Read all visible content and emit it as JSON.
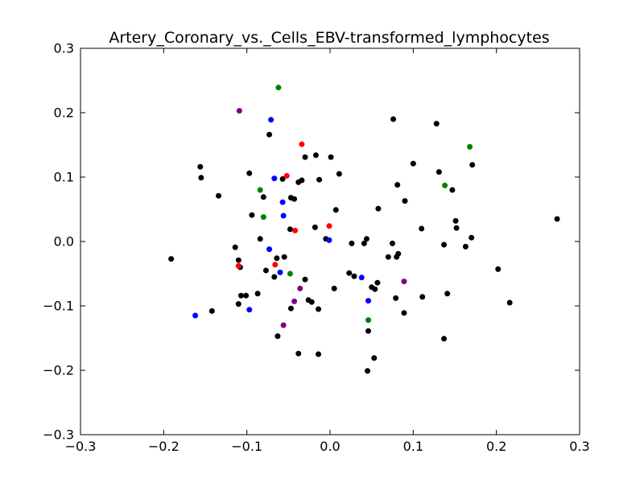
{
  "chart_data": {
    "type": "scatter",
    "title": "Artery_Coronary_vs._Cells_EBV-transformed_lymphocytes",
    "xlabel": "",
    "ylabel": "",
    "xlim": [
      -0.3,
      0.3
    ],
    "ylim": [
      -0.3,
      0.3
    ],
    "xticks": [
      "−0.3",
      "−0.2",
      "−0.1",
      "0.0",
      "0.1",
      "0.2",
      "0.3"
    ],
    "yticks": [
      "−0.3",
      "−0.2",
      "−0.1",
      "0.0",
      "0.1",
      "0.2",
      "0.3"
    ],
    "grid": false,
    "legend": "none",
    "colors": {
      "black": "#000000",
      "red": "#ff0000",
      "blue": "#0000ff",
      "green": "#008000",
      "purple": "#800080"
    },
    "series": [
      {
        "color": "black",
        "points": [
          [
            -0.156,
            0.116
          ],
          [
            -0.155,
            0.099
          ],
          [
            -0.134,
            0.071
          ],
          [
            -0.191,
            -0.027
          ],
          [
            -0.142,
            -0.108
          ],
          [
            -0.114,
            -0.009
          ],
          [
            -0.11,
            -0.029
          ],
          [
            -0.108,
            -0.04
          ],
          [
            -0.11,
            -0.097
          ],
          [
            -0.107,
            -0.084
          ],
          [
            -0.101,
            -0.084
          ],
          [
            -0.097,
            0.106
          ],
          [
            -0.094,
            0.041
          ],
          [
            -0.087,
            -0.081
          ],
          [
            -0.084,
            0.004
          ],
          [
            -0.08,
            0.069
          ],
          [
            -0.077,
            -0.045
          ],
          [
            -0.073,
            0.166
          ],
          [
            -0.067,
            -0.055
          ],
          [
            -0.064,
            -0.026
          ],
          [
            -0.063,
            -0.147
          ],
          [
            -0.057,
            0.097
          ],
          [
            -0.055,
            -0.024
          ],
          [
            -0.047,
            0.068
          ],
          [
            -0.048,
            0.019
          ],
          [
            -0.047,
            -0.104
          ],
          [
            -0.043,
            0.066
          ],
          [
            -0.038,
            0.092
          ],
          [
            -0.034,
            0.095
          ],
          [
            -0.038,
            -0.174
          ],
          [
            -0.03,
            0.131
          ],
          [
            -0.03,
            -0.059
          ],
          [
            -0.026,
            -0.091
          ],
          [
            -0.022,
            -0.094
          ],
          [
            -0.017,
            0.134
          ],
          [
            -0.014,
            -0.105
          ],
          [
            -0.013,
            0.096
          ],
          [
            -0.014,
            -0.175
          ],
          [
            -0.018,
            0.022
          ],
          [
            -0.005,
            0.004
          ],
          [
            0.001,
            0.131
          ],
          [
            0.005,
            -0.073
          ],
          [
            0.007,
            0.049
          ],
          [
            0.011,
            0.105
          ],
          [
            0.023,
            -0.049
          ],
          [
            0.026,
            -0.003
          ],
          [
            0.029,
            -0.054
          ],
          [
            0.041,
            -0.003
          ],
          [
            0.044,
            0.004
          ],
          [
            0.045,
            -0.201
          ],
          [
            0.046,
            -0.139
          ],
          [
            0.05,
            -0.071
          ],
          [
            0.053,
            -0.181
          ],
          [
            0.054,
            -0.074
          ],
          [
            0.057,
            -0.064
          ],
          [
            0.058,
            0.051
          ],
          [
            0.07,
            -0.024
          ],
          [
            0.075,
            -0.003
          ],
          [
            0.076,
            0.19
          ],
          [
            0.079,
            -0.088
          ],
          [
            0.08,
            -0.024
          ],
          [
            0.081,
            0.088
          ],
          [
            0.082,
            -0.019
          ],
          [
            0.089,
            -0.111
          ],
          [
            0.09,
            0.063
          ],
          [
            0.1,
            0.121
          ],
          [
            0.11,
            0.02
          ],
          [
            0.111,
            -0.086
          ],
          [
            0.128,
            0.183
          ],
          [
            0.131,
            0.108
          ],
          [
            0.137,
            -0.005
          ],
          [
            0.137,
            -0.151
          ],
          [
            0.141,
            -0.081
          ],
          [
            0.147,
            0.08
          ],
          [
            0.151,
            0.032
          ],
          [
            0.152,
            0.021
          ],
          [
            0.163,
            -0.008
          ],
          [
            0.17,
            0.006
          ],
          [
            0.171,
            0.119
          ],
          [
            0.202,
            -0.043
          ],
          [
            0.216,
            -0.095
          ],
          [
            0.273,
            0.035
          ]
        ]
      },
      {
        "color": "red",
        "points": [
          [
            -0.034,
            0.151
          ],
          [
            -0.052,
            0.102
          ],
          [
            -0.042,
            0.017
          ],
          [
            -0.001,
            0.024
          ],
          [
            -0.11,
            -0.038
          ],
          [
            -0.066,
            -0.036
          ]
        ]
      },
      {
        "color": "blue",
        "points": [
          [
            -0.071,
            0.189
          ],
          [
            -0.067,
            0.098
          ],
          [
            -0.057,
            0.061
          ],
          [
            -0.056,
            0.04
          ],
          [
            -0.073,
            -0.012
          ],
          [
            -0.06,
            -0.048
          ],
          [
            -0.001,
            0.002
          ],
          [
            0.038,
            -0.056
          ],
          [
            0.046,
            -0.092
          ],
          [
            -0.097,
            -0.106
          ],
          [
            -0.162,
            -0.115
          ]
        ]
      },
      {
        "color": "green",
        "points": [
          [
            -0.062,
            0.239
          ],
          [
            -0.084,
            0.08
          ],
          [
            -0.08,
            0.038
          ],
          [
            -0.048,
            -0.05
          ],
          [
            0.168,
            0.147
          ],
          [
            0.138,
            0.087
          ],
          [
            0.046,
            -0.122
          ]
        ]
      },
      {
        "color": "purple",
        "points": [
          [
            -0.109,
            0.203
          ],
          [
            -0.036,
            -0.073
          ],
          [
            -0.043,
            -0.093
          ],
          [
            -0.056,
            -0.13
          ],
          [
            0.089,
            -0.062
          ]
        ]
      }
    ]
  }
}
